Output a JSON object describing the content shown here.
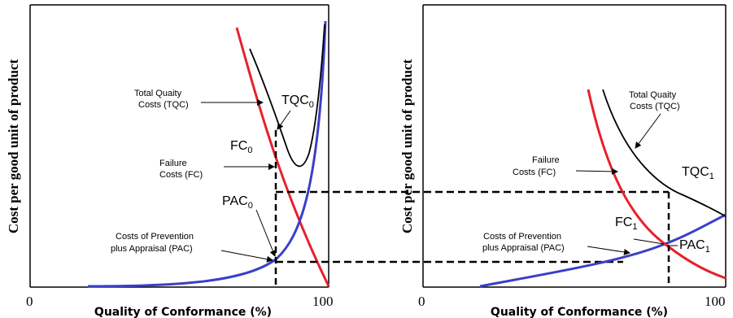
{
  "left_panel": {
    "y_axis_label": "Cost per good unit of product",
    "x_axis_label": "Quality of Conformance (%)",
    "x_tick_min": "0",
    "x_tick_max": "100",
    "annotations": {
      "tqc_text_line1": "Total Quaity",
      "tqc_text_line2": "Costs (TQC)",
      "fc_text_line1": "Failure",
      "fc_text_line2": "Costs (FC)",
      "pac_text_line1": "Costs of Prevention",
      "pac_text_line2": "plus Appraisal (PAC)"
    },
    "point_labels": {
      "tqc": {
        "base": "TQC",
        "sub": "0"
      },
      "fc": {
        "base": "FC",
        "sub": "0"
      },
      "pac": {
        "base": "PAC",
        "sub": "0"
      }
    }
  },
  "right_panel": {
    "y_axis_label": "Cost per good unit of product",
    "x_axis_label": "Quality of Conformance (%)",
    "x_tick_min": "0",
    "x_tick_max": "100",
    "annotations": {
      "tqc_text_line1": "Total Quaity",
      "tqc_text_line2": "Costs (TQC)",
      "fc_text_line1": "Failure",
      "fc_text_line2": "Costs (FC)",
      "pac_text_line1": "Costs of Prevention",
      "pac_text_line2": "plus Appraisal (PAC)"
    },
    "point_labels": {
      "tqc": {
        "base": "TQC",
        "sub": "1"
      },
      "fc": {
        "base": "FC",
        "sub": "1"
      },
      "pac": {
        "base": "PAC",
        "sub": "1"
      }
    }
  },
  "colors": {
    "failure_cost": "#e8202a",
    "prevention_cost": "#3a3fc8",
    "total_cost": "#000000",
    "axis": "#000000"
  }
}
